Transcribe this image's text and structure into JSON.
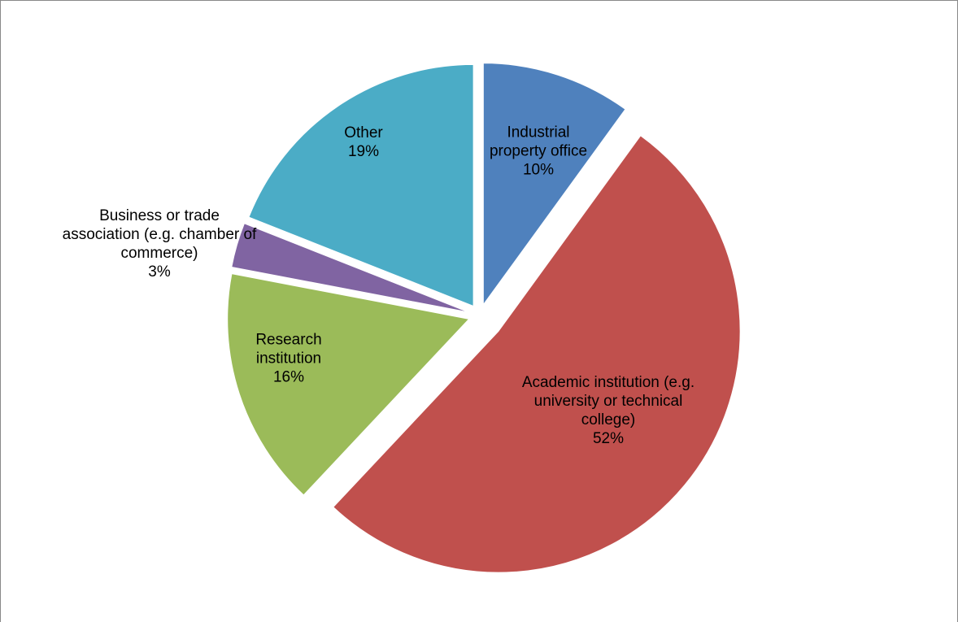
{
  "chart_data": {
    "type": "pie",
    "categories": [
      "Industrial property office",
      "Academic institution (e.g. university or technical college)",
      "Research institution",
      "Business or trade association (e.g. chamber of commerce)",
      "Other"
    ],
    "values": [
      10,
      52,
      16,
      3,
      19
    ],
    "value_labels": [
      "10%",
      "52%",
      "16%",
      "3%",
      "19%"
    ],
    "colors": [
      "#4f81bd",
      "#c0504d",
      "#9bbb59",
      "#8064a2",
      "#4bacc6"
    ]
  }
}
